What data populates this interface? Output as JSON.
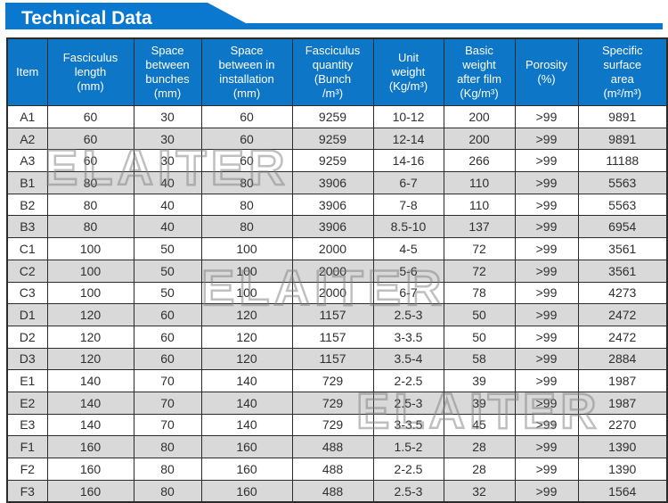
{
  "banner": {
    "title": "Technical Data"
  },
  "colors": {
    "banner_bg": "#0b78cf",
    "header_bg": "#0e76c6",
    "header_text": "#ffffff",
    "row_bg": "#ffffff",
    "row_alt_bg": "#d9d9d9",
    "border": "#2b2b2b",
    "text": "#2f2f2f",
    "watermark": "#8a8a8a"
  },
  "watermarks": [
    {
      "text": "ELAITER"
    },
    {
      "text": "ELAITER"
    },
    {
      "text": "ELAITER"
    }
  ],
  "table": {
    "headers": [
      "Item",
      "Fasciculus\nlength\n(mm)",
      "Space\nbetween\nbunches\n(mm)",
      "Space\nbetween in\ninstallation\n(mm)",
      "Fasciculus\nquantity\n(Bunch\n/m³)",
      "Unit\nweight\n(Kg/m³)",
      "Basic\nweight\nafter film\n(Kg/m³)",
      "Porosity\n(%)",
      "Specific\nsurface\narea\n(m²/m³)"
    ],
    "rows": [
      [
        "A1",
        "60",
        "30",
        "60",
        "9259",
        "10-12",
        "200",
        ">99",
        "9891"
      ],
      [
        "A2",
        "60",
        "30",
        "60",
        "9259",
        "12-14",
        "200",
        ">99",
        "9891"
      ],
      [
        "A3",
        "60",
        "30",
        "60",
        "9259",
        "14-16",
        "266",
        ">99",
        "11188"
      ],
      [
        "B1",
        "80",
        "40",
        "80",
        "3906",
        "6-7",
        "110",
        ">99",
        "5563"
      ],
      [
        "B2",
        "80",
        "40",
        "80",
        "3906",
        "7-8",
        "110",
        ">99",
        "5563"
      ],
      [
        "B3",
        "80",
        "40",
        "80",
        "3906",
        "8.5-10",
        "137",
        ">99",
        "6954"
      ],
      [
        "C1",
        "100",
        "50",
        "100",
        "2000",
        "4-5",
        "72",
        ">99",
        "3561"
      ],
      [
        "C2",
        "100",
        "50",
        "100",
        "2000",
        "5-6",
        "72",
        ">99",
        "3561"
      ],
      [
        "C3",
        "100",
        "50",
        "100",
        "2000",
        "6-7",
        "78",
        ">99",
        "4273"
      ],
      [
        "D1",
        "120",
        "60",
        "120",
        "1157",
        "2.5-3",
        "50",
        ">99",
        "2472"
      ],
      [
        "D2",
        "120",
        "60",
        "120",
        "1157",
        "3-3.5",
        "50",
        ">99",
        "2472"
      ],
      [
        "D3",
        "120",
        "60",
        "120",
        "1157",
        "3.5-4",
        "58",
        ">99",
        "2884"
      ],
      [
        "E1",
        "140",
        "70",
        "140",
        "729",
        "2-2.5",
        "39",
        ">99",
        "1987"
      ],
      [
        "E2",
        "140",
        "70",
        "140",
        "729",
        "2.5-3",
        "39",
        ">99",
        "1987"
      ],
      [
        "E3",
        "140",
        "70",
        "140",
        "729",
        "3-3.5",
        "45",
        ">99",
        "2270"
      ],
      [
        "F1",
        "160",
        "80",
        "160",
        "488",
        "1.5-2",
        "28",
        ">99",
        "1390"
      ],
      [
        "F2",
        "160",
        "80",
        "160",
        "488",
        "2-2.5",
        "28",
        ">99",
        "1390"
      ],
      [
        "F3",
        "160",
        "80",
        "160",
        "488",
        "2.5-3",
        "32",
        ">99",
        "1564"
      ]
    ]
  }
}
